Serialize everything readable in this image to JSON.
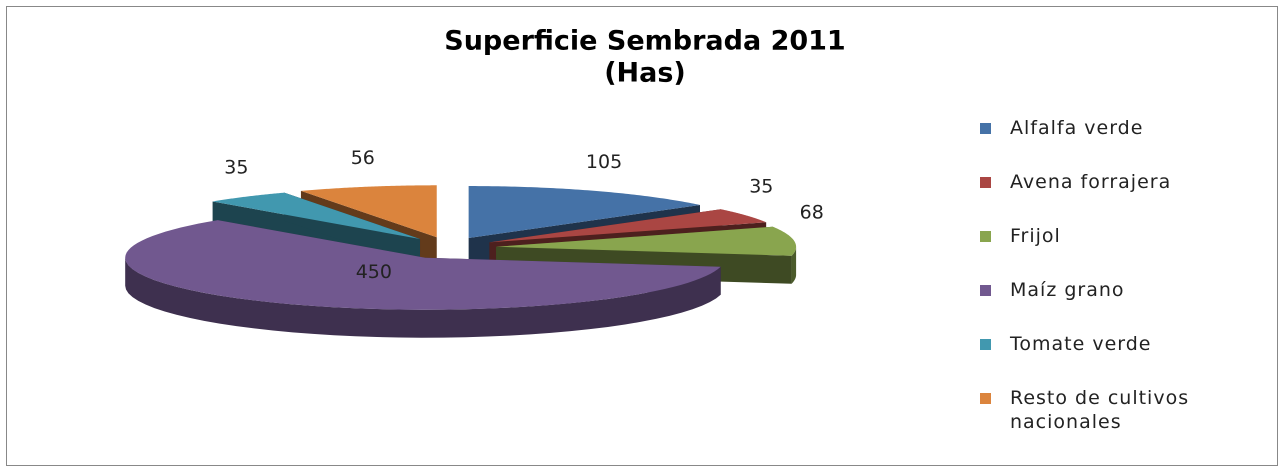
{
  "chart_data": {
    "type": "pie3d",
    "title": "Superficie Sembrada 2011",
    "subtitle": "(Has)",
    "categories": [
      "Alfalfa verde",
      "Avena forrajera",
      "Frijol",
      "Maíz grano",
      "Tomate verde",
      "Resto de cultivos nacionales"
    ],
    "values": [
      105,
      35,
      68,
      450,
      35,
      56
    ],
    "colors": [
      "#4572a7",
      "#aa4643",
      "#89a54e",
      "#71588f",
      "#4198af",
      "#db843d"
    ],
    "legend": "right"
  }
}
